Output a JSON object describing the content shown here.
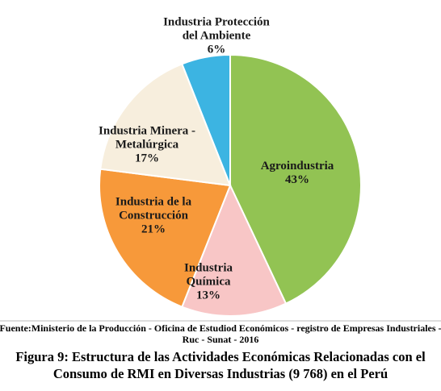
{
  "chart_data": {
    "type": "pie",
    "categories": [
      "Agroindustria",
      "Industria Química",
      "Industria de la Construcción",
      "Industria Minera - Metalúrgica",
      "Industria Protección del Ambiente"
    ],
    "values": [
      43,
      13,
      21,
      17,
      6
    ],
    "value_labels": [
      "43%",
      "13%",
      "21%",
      "17%",
      "6%"
    ],
    "colors": [
      "#92c353",
      "#f8c6c6",
      "#f7993a",
      "#f7eedd",
      "#3cb4e2"
    ],
    "source": "Fuente:Ministerio de la Producción - Oficina de Estudiod Económicos - registro de Empresas Industriales - Ruc - Sunat - 2016",
    "caption": "Figura 9: Estructura de las Actividades Económicas Relacionadas con el Consumo de RMI en Diversas Industrias (9 768) en el Perú"
  }
}
